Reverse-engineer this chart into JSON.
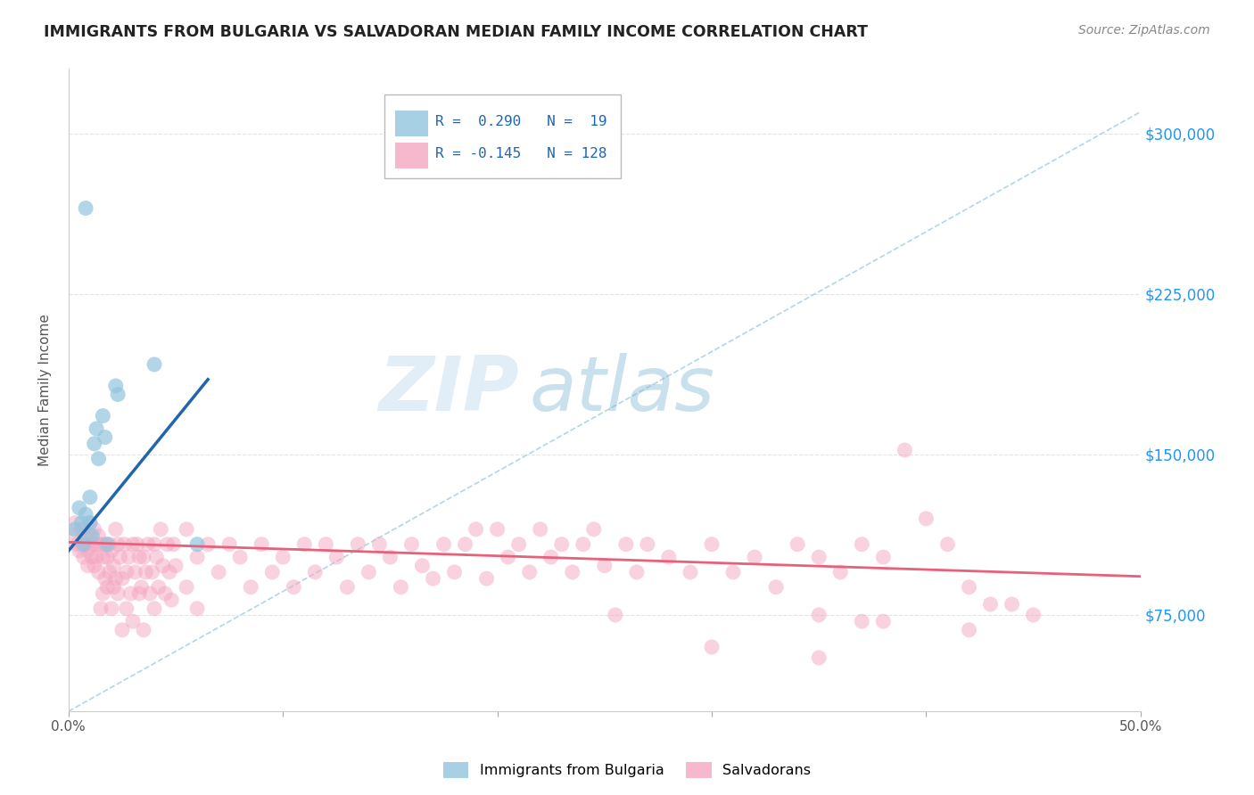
{
  "title": "IMMIGRANTS FROM BULGARIA VS SALVADORAN MEDIAN FAMILY INCOME CORRELATION CHART",
  "source": "Source: ZipAtlas.com",
  "ylabel": "Median Family Income",
  "xlim": [
    0.0,
    0.5
  ],
  "ylim": [
    30000,
    330000
  ],
  "yticks": [
    75000,
    150000,
    225000,
    300000
  ],
  "ytick_labels": [
    "$75,000",
    "$150,000",
    "$225,000",
    "$300,000"
  ],
  "xtick_labels": [
    "0.0%",
    "",
    "",
    "",
    "",
    "50.0%"
  ],
  "xticks": [
    0.0,
    0.1,
    0.2,
    0.3,
    0.4,
    0.5
  ],
  "blue_color": "#92c5de",
  "pink_color": "#f4a6c0",
  "blue_line_color": "#2166ac",
  "pink_line_color": "#e8607a",
  "ref_line_color": "#92c5de",
  "watermark_zip": "ZIP",
  "watermark_atlas": "atlas",
  "bg_color": "#ffffff",
  "grid_color": "#dddddd",
  "blue_scatter": [
    [
      0.003,
      115000
    ],
    [
      0.005,
      125000
    ],
    [
      0.006,
      118000
    ],
    [
      0.007,
      108000
    ],
    [
      0.008,
      122000
    ],
    [
      0.01,
      130000
    ],
    [
      0.01,
      118000
    ],
    [
      0.011,
      112000
    ],
    [
      0.012,
      155000
    ],
    [
      0.013,
      162000
    ],
    [
      0.014,
      148000
    ],
    [
      0.016,
      168000
    ],
    [
      0.017,
      158000
    ],
    [
      0.018,
      108000
    ],
    [
      0.022,
      182000
    ],
    [
      0.023,
      178000
    ],
    [
      0.008,
      265000
    ],
    [
      0.04,
      192000
    ],
    [
      0.06,
      108000
    ]
  ],
  "pink_scatter": [
    [
      0.002,
      112000
    ],
    [
      0.003,
      118000
    ],
    [
      0.004,
      108000
    ],
    [
      0.005,
      105000
    ],
    [
      0.006,
      115000
    ],
    [
      0.006,
      108000
    ],
    [
      0.007,
      102000
    ],
    [
      0.007,
      115000
    ],
    [
      0.008,
      108000
    ],
    [
      0.008,
      112000
    ],
    [
      0.009,
      105000
    ],
    [
      0.009,
      98000
    ],
    [
      0.01,
      112000
    ],
    [
      0.01,
      118000
    ],
    [
      0.011,
      102000
    ],
    [
      0.011,
      108000
    ],
    [
      0.012,
      115000
    ],
    [
      0.012,
      98000
    ],
    [
      0.013,
      108000
    ],
    [
      0.013,
      102000
    ],
    [
      0.014,
      95000
    ],
    [
      0.014,
      112000
    ],
    [
      0.015,
      78000
    ],
    [
      0.015,
      108000
    ],
    [
      0.016,
      85000
    ],
    [
      0.016,
      102000
    ],
    [
      0.017,
      92000
    ],
    [
      0.017,
      108000
    ],
    [
      0.018,
      88000
    ],
    [
      0.018,
      102000
    ],
    [
      0.019,
      95000
    ],
    [
      0.019,
      108000
    ],
    [
      0.02,
      78000
    ],
    [
      0.02,
      105000
    ],
    [
      0.021,
      88000
    ],
    [
      0.021,
      98000
    ],
    [
      0.022,
      115000
    ],
    [
      0.022,
      92000
    ],
    [
      0.023,
      108000
    ],
    [
      0.023,
      85000
    ],
    [
      0.024,
      102000
    ],
    [
      0.025,
      92000
    ],
    [
      0.025,
      68000
    ],
    [
      0.026,
      108000
    ],
    [
      0.027,
      95000
    ],
    [
      0.027,
      78000
    ],
    [
      0.028,
      102000
    ],
    [
      0.029,
      85000
    ],
    [
      0.03,
      108000
    ],
    [
      0.03,
      72000
    ],
    [
      0.031,
      95000
    ],
    [
      0.032,
      108000
    ],
    [
      0.033,
      85000
    ],
    [
      0.033,
      102000
    ],
    [
      0.034,
      88000
    ],
    [
      0.035,
      68000
    ],
    [
      0.035,
      102000
    ],
    [
      0.036,
      95000
    ],
    [
      0.037,
      108000
    ],
    [
      0.038,
      85000
    ],
    [
      0.039,
      95000
    ],
    [
      0.04,
      108000
    ],
    [
      0.04,
      78000
    ],
    [
      0.041,
      102000
    ],
    [
      0.042,
      88000
    ],
    [
      0.043,
      115000
    ],
    [
      0.044,
      98000
    ],
    [
      0.045,
      85000
    ],
    [
      0.046,
      108000
    ],
    [
      0.047,
      95000
    ],
    [
      0.048,
      82000
    ],
    [
      0.049,
      108000
    ],
    [
      0.05,
      98000
    ],
    [
      0.055,
      115000
    ],
    [
      0.055,
      88000
    ],
    [
      0.06,
      102000
    ],
    [
      0.06,
      78000
    ],
    [
      0.065,
      108000
    ],
    [
      0.07,
      95000
    ],
    [
      0.075,
      108000
    ],
    [
      0.08,
      102000
    ],
    [
      0.085,
      88000
    ],
    [
      0.09,
      108000
    ],
    [
      0.095,
      95000
    ],
    [
      0.1,
      102000
    ],
    [
      0.105,
      88000
    ],
    [
      0.11,
      108000
    ],
    [
      0.115,
      95000
    ],
    [
      0.12,
      108000
    ],
    [
      0.125,
      102000
    ],
    [
      0.13,
      88000
    ],
    [
      0.135,
      108000
    ],
    [
      0.14,
      95000
    ],
    [
      0.145,
      108000
    ],
    [
      0.15,
      102000
    ],
    [
      0.155,
      88000
    ],
    [
      0.16,
      108000
    ],
    [
      0.165,
      98000
    ],
    [
      0.17,
      92000
    ],
    [
      0.175,
      108000
    ],
    [
      0.18,
      95000
    ],
    [
      0.185,
      108000
    ],
    [
      0.19,
      115000
    ],
    [
      0.195,
      92000
    ],
    [
      0.2,
      115000
    ],
    [
      0.205,
      102000
    ],
    [
      0.21,
      108000
    ],
    [
      0.215,
      95000
    ],
    [
      0.22,
      115000
    ],
    [
      0.225,
      102000
    ],
    [
      0.23,
      108000
    ],
    [
      0.235,
      95000
    ],
    [
      0.24,
      108000
    ],
    [
      0.245,
      115000
    ],
    [
      0.25,
      98000
    ],
    [
      0.255,
      75000
    ],
    [
      0.26,
      108000
    ],
    [
      0.265,
      95000
    ],
    [
      0.27,
      108000
    ],
    [
      0.28,
      102000
    ],
    [
      0.29,
      95000
    ],
    [
      0.3,
      108000
    ],
    [
      0.31,
      95000
    ],
    [
      0.32,
      102000
    ],
    [
      0.33,
      88000
    ],
    [
      0.34,
      108000
    ],
    [
      0.35,
      102000
    ],
    [
      0.36,
      95000
    ],
    [
      0.37,
      108000
    ],
    [
      0.38,
      102000
    ],
    [
      0.39,
      152000
    ],
    [
      0.4,
      120000
    ],
    [
      0.41,
      108000
    ],
    [
      0.42,
      88000
    ],
    [
      0.43,
      80000
    ],
    [
      0.44,
      80000
    ],
    [
      0.35,
      75000
    ],
    [
      0.37,
      72000
    ],
    [
      0.42,
      68000
    ],
    [
      0.45,
      75000
    ],
    [
      0.3,
      60000
    ],
    [
      0.35,
      55000
    ],
    [
      0.38,
      72000
    ]
  ]
}
